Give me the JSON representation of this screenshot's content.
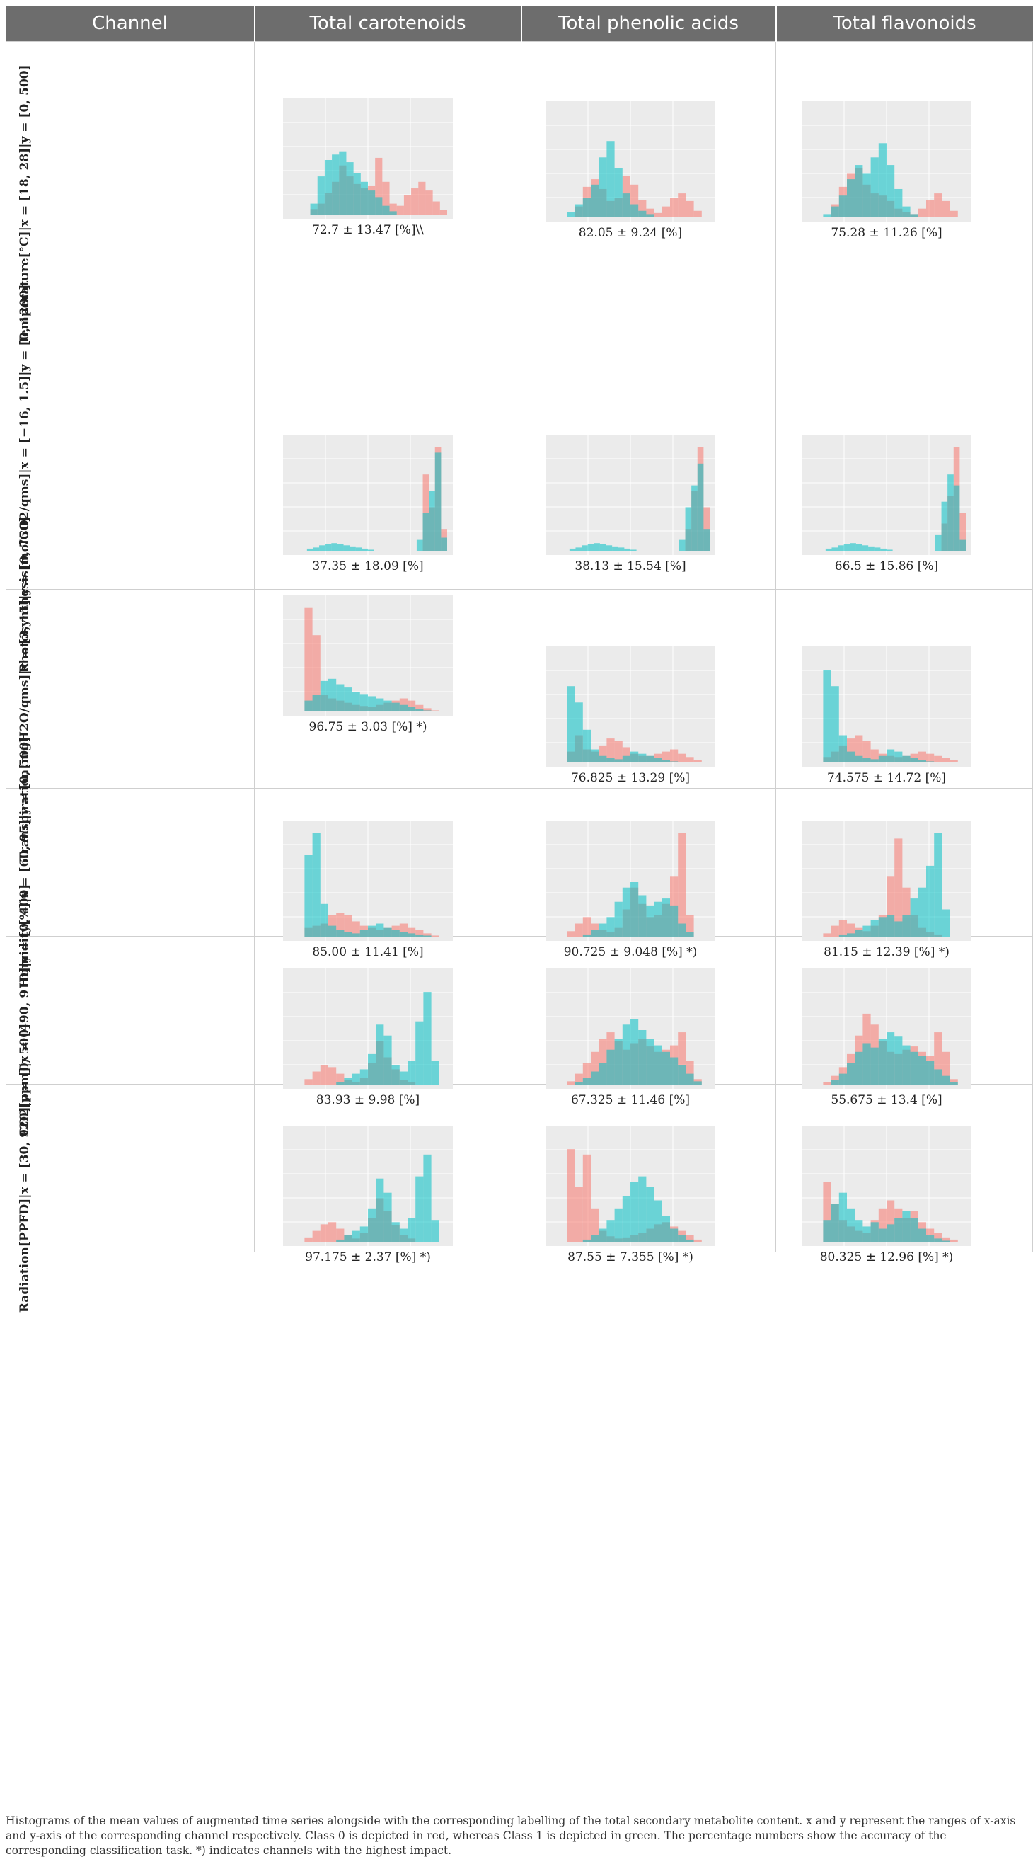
{
  "header": {
    "channel": "Channel",
    "col1": "Total carotenoids",
    "col2": "Total phenolic acids",
    "col3": "Total flavonoids"
  },
  "colors": {
    "class0": "#F8766D",
    "class1": "#00BFC4",
    "panel": "#EBEBEB",
    "header": "#6D6D6D"
  },
  "rows": [
    {
      "label": "Temperature[°C]|x = [18, 28]|y = [0, 500]",
      "cells": [
        {
          "accuracy": "72.7 ± 13.47 [%]\\\\",
          "class0": [
            0,
            0,
            0,
            5,
            10,
            20,
            30,
            45,
            35,
            28,
            24,
            26,
            52,
            30,
            10,
            8,
            18,
            24,
            30,
            22,
            12,
            4
          ],
          "class1": [
            0,
            0,
            0,
            10,
            35,
            50,
            55,
            58,
            48,
            38,
            30,
            22,
            16,
            8,
            3,
            0,
            0,
            0,
            0,
            0,
            0,
            0
          ]
        },
        {
          "accuracy": "82.05 ± 9.24 [%]",
          "class0": [
            0,
            0,
            0,
            10,
            28,
            35,
            26,
            15,
            18,
            38,
            30,
            16,
            8,
            4,
            10,
            18,
            22,
            15,
            6,
            0
          ],
          "class1": [
            0,
            0,
            5,
            12,
            18,
            30,
            55,
            70,
            45,
            22,
            12,
            6,
            3,
            0,
            0,
            0,
            0,
            0,
            0,
            0
          ]
        },
        {
          "accuracy": "75.28 ± 11.26 [%]",
          "class0": [
            0,
            0,
            0,
            12,
            28,
            40,
            45,
            30,
            22,
            20,
            15,
            8,
            5,
            3,
            8,
            16,
            22,
            15,
            6,
            0
          ],
          "class1": [
            0,
            0,
            3,
            10,
            20,
            35,
            48,
            40,
            55,
            68,
            48,
            26,
            10,
            3,
            0,
            0,
            0,
            0,
            0,
            0
          ]
        }
      ]
    },
    {
      "label": "Photosynthesis[molCO2/qms]|x = [−16, 1.5]|y = [0, 1200]",
      "cells": [
        {
          "accuracy": "37.35 ± 18.09 [%]",
          "class0": [
            0,
            0,
            0,
            0,
            0,
            0,
            0,
            0,
            0,
            0,
            0,
            0,
            0,
            0,
            0,
            0,
            0,
            0,
            0,
            0,
            0,
            0,
            70,
            40,
            95,
            20
          ],
          "class1": [
            0,
            0,
            0,
            2,
            3,
            5,
            6,
            7,
            6,
            5,
            4,
            3,
            2,
            1,
            0,
            0,
            0,
            0,
            0,
            0,
            0,
            10,
            35,
            55,
            90,
            12
          ]
        },
        {
          "accuracy": "38.13 ± 15.54 [%]",
          "class0": [
            0,
            0,
            0,
            0,
            0,
            0,
            0,
            0,
            0,
            0,
            0,
            0,
            0,
            0,
            0,
            0,
            0,
            0,
            0,
            0,
            0,
            0,
            20,
            55,
            95,
            40
          ],
          "class1": [
            0,
            0,
            0,
            2,
            3,
            5,
            6,
            7,
            6,
            5,
            4,
            3,
            2,
            1,
            0,
            0,
            0,
            0,
            0,
            0,
            0,
            10,
            40,
            60,
            80,
            20
          ]
        },
        {
          "accuracy": "66.5 ± 15.86 [%]",
          "class0": [
            0,
            0,
            0,
            0,
            0,
            0,
            0,
            0,
            0,
            0,
            0,
            0,
            0,
            0,
            0,
            0,
            0,
            0,
            0,
            0,
            0,
            0,
            25,
            50,
            95,
            35
          ],
          "class1": [
            0,
            0,
            0,
            2,
            3,
            5,
            6,
            7,
            6,
            5,
            4,
            3,
            2,
            1,
            0,
            0,
            0,
            0,
            0,
            0,
            0,
            15,
            45,
            70,
            60,
            10
          ]
        }
      ]
    },
    {
      "label": "Transpiration[mgH2O/qms]|x = [3, 15]|y = [0, 750]",
      "cells": [
        {
          "accuracy": "96.75 ± 3.03 [%] *)",
          "class0": [
            0,
            0,
            95,
            70,
            15,
            12,
            10,
            8,
            6,
            5,
            4,
            6,
            8,
            10,
            12,
            10,
            6,
            3,
            1,
            0
          ],
          "class1": [
            0,
            0,
            10,
            15,
            28,
            30,
            25,
            22,
            18,
            16,
            14,
            12,
            10,
            8,
            6,
            4,
            2,
            1,
            0,
            0
          ]
        },
        {
          "accuracy": "76.825 ± 13.29 [%]",
          "class0": [
            0,
            0,
            10,
            25,
            12,
            10,
            15,
            22,
            20,
            14,
            8,
            6,
            6,
            8,
            10,
            12,
            8,
            5,
            2,
            0
          ],
          "class1": [
            0,
            0,
            70,
            55,
            30,
            12,
            6,
            4,
            3,
            6,
            10,
            8,
            6,
            4,
            2,
            1,
            0,
            0,
            0,
            0
          ]
        },
        {
          "accuracy": "74.575 ± 14.72 [%]",
          "class0": [
            0,
            0,
            5,
            10,
            15,
            22,
            25,
            20,
            12,
            8,
            6,
            5,
            6,
            8,
            10,
            8,
            6,
            4,
            2,
            0
          ],
          "class1": [
            0,
            0,
            85,
            70,
            25,
            10,
            6,
            4,
            3,
            6,
            12,
            10,
            6,
            4,
            2,
            1,
            0,
            0,
            0,
            0
          ]
        }
      ]
    },
    {
      "label": "Humidity[%]|x = [60, 95]|y = [0, 500]",
      "cells": [
        {
          "accuracy": "85.00 ± 11.41 [%]",
          "class0": [
            0,
            0,
            8,
            10,
            12,
            20,
            22,
            20,
            14,
            10,
            8,
            6,
            8,
            10,
            12,
            8,
            6,
            3,
            1,
            0
          ],
          "class1": [
            0,
            0,
            75,
            95,
            30,
            10,
            6,
            4,
            3,
            6,
            10,
            12,
            8,
            6,
            4,
            3,
            2,
            1,
            0,
            0
          ]
        },
        {
          "accuracy": "90.725 ± 9.048 [%] *)",
          "class0": [
            0,
            0,
            5,
            12,
            18,
            12,
            6,
            4,
            8,
            25,
            45,
            30,
            18,
            20,
            30,
            55,
            95,
            20,
            0,
            0
          ],
          "class1": [
            0,
            0,
            0,
            0,
            2,
            6,
            12,
            18,
            32,
            45,
            50,
            38,
            28,
            32,
            35,
            28,
            12,
            4,
            0,
            0
          ]
        },
        {
          "accuracy": "81.15 ± 12.39 [%] *)",
          "class0": [
            0,
            0,
            3,
            10,
            15,
            12,
            8,
            5,
            10,
            20,
            55,
            90,
            45,
            20,
            8,
            4,
            2,
            0,
            0,
            0
          ],
          "class1": [
            0,
            0,
            0,
            0,
            2,
            3,
            6,
            10,
            15,
            18,
            20,
            14,
            20,
            35,
            45,
            65,
            95,
            25,
            0,
            0
          ]
        }
      ]
    },
    {
      "label": "CO2[ppm]|x = [490, 910]|y = [0, 400]",
      "cells": [
        {
          "accuracy": "83.93 ± 9.98 [%]",
          "class0": [
            0,
            0,
            5,
            12,
            18,
            16,
            10,
            4,
            2,
            6,
            20,
            40,
            25,
            14,
            4,
            2,
            0,
            0,
            0,
            0
          ],
          "class1": [
            0,
            0,
            0,
            0,
            0,
            0,
            2,
            6,
            10,
            14,
            28,
            55,
            45,
            18,
            12,
            22,
            58,
            85,
            22,
            0
          ]
        },
        {
          "accuracy": "67.325 ± 11.46 [%]",
          "class0": [
            0,
            0,
            3,
            10,
            20,
            30,
            42,
            48,
            40,
            32,
            38,
            42,
            35,
            30,
            32,
            36,
            48,
            22,
            5,
            0
          ],
          "class1": [
            0,
            0,
            0,
            2,
            6,
            12,
            20,
            32,
            42,
            55,
            60,
            50,
            42,
            36,
            30,
            25,
            18,
            10,
            3,
            0
          ]
        },
        {
          "accuracy": "55.675 ± 13.4 [%]",
          "class0": [
            0,
            0,
            2,
            8,
            16,
            28,
            45,
            65,
            55,
            40,
            30,
            28,
            32,
            35,
            30,
            26,
            48,
            30,
            5,
            0
          ],
          "class1": [
            0,
            0,
            0,
            4,
            10,
            20,
            30,
            38,
            34,
            42,
            48,
            44,
            36,
            30,
            26,
            22,
            14,
            8,
            2,
            0
          ]
        }
      ]
    },
    {
      "label": "Radiation[PPFD]|x = [30, 920]|y = [0, 500]",
      "cells": [
        {
          "accuracy": "97.175 ± 2.37 [%] *)",
          "class0": [
            0,
            0,
            4,
            10,
            16,
            18,
            12,
            6,
            3,
            8,
            22,
            40,
            28,
            15,
            6,
            3,
            0,
            0,
            0,
            0
          ],
          "class1": [
            0,
            0,
            0,
            0,
            0,
            0,
            2,
            6,
            10,
            14,
            30,
            58,
            45,
            18,
            12,
            22,
            60,
            80,
            20,
            0
          ]
        },
        {
          "accuracy": "87.55 ± 7.355 [%] *)",
          "class0": [
            0,
            0,
            85,
            50,
            80,
            30,
            10,
            5,
            3,
            4,
            6,
            8,
            12,
            16,
            18,
            14,
            10,
            6,
            2,
            0
          ],
          "class1": [
            0,
            0,
            0,
            0,
            2,
            6,
            12,
            20,
            30,
            42,
            55,
            60,
            50,
            38,
            24,
            12,
            6,
            2,
            0,
            0
          ]
        },
        {
          "accuracy": "80.325 ± 12.96 [%] *)",
          "class0": [
            0,
            0,
            55,
            35,
            20,
            14,
            10,
            8,
            20,
            30,
            38,
            30,
            22,
            28,
            18,
            12,
            8,
            4,
            2,
            0
          ],
          "class1": [
            0,
            0,
            20,
            35,
            45,
            30,
            20,
            14,
            18,
            12,
            16,
            22,
            28,
            22,
            12,
            6,
            3,
            1,
            0,
            0
          ]
        }
      ]
    }
  ],
  "caption": "Histograms of the mean values of augmented time series alongside with the corresponding labelling of the total secondary metabolite content. x and y represent the ranges of x-axis and y-axis of the corresponding channel respectively. Class 0 is depicted in red, whereas Class 1 is depicted in green. The percentage numbers show the accuracy of the corresponding classification task. *) indicates channels with the highest impact."
}
